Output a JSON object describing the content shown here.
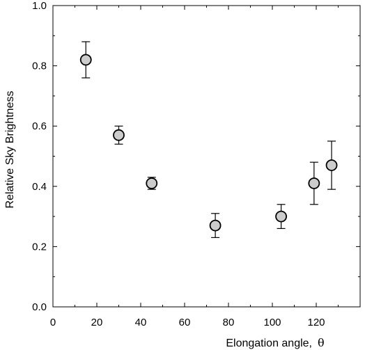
{
  "chart_data": {
    "type": "scatter",
    "title": "",
    "xlabel": "Elongation angle,",
    "xlabel_symbol": "θ",
    "ylabel": "Relative Sky Brightness",
    "xlim": [
      0,
      140
    ],
    "ylim": [
      0,
      1.0
    ],
    "x_ticks": [
      0,
      20,
      40,
      60,
      80,
      100,
      120
    ],
    "x_tick_labels": [
      "0",
      "20",
      "40",
      "60",
      "80",
      "100",
      "120"
    ],
    "y_ticks": [
      0,
      0.2,
      0.4,
      0.6,
      0.8,
      1.0
    ],
    "y_tick_labels": [
      "0.0",
      "0.2",
      "0.4",
      "0.6",
      "0.8",
      "1.0"
    ],
    "grid": false,
    "marker": "circle",
    "marker_fill": "#cccccc",
    "points": [
      {
        "x": 15,
        "y": 0.82,
        "err_low": 0.76,
        "err_high": 0.88
      },
      {
        "x": 30,
        "y": 0.57,
        "err_low": 0.54,
        "err_high": 0.6
      },
      {
        "x": 45,
        "y": 0.41,
        "err_low": 0.39,
        "err_high": 0.43
      },
      {
        "x": 74,
        "y": 0.27,
        "err_low": 0.23,
        "err_high": 0.31
      },
      {
        "x": 104,
        "y": 0.3,
        "err_low": 0.26,
        "err_high": 0.34
      },
      {
        "x": 119,
        "y": 0.41,
        "err_low": 0.34,
        "err_high": 0.48
      },
      {
        "x": 127,
        "y": 0.47,
        "err_low": 0.39,
        "err_high": 0.55
      }
    ]
  }
}
